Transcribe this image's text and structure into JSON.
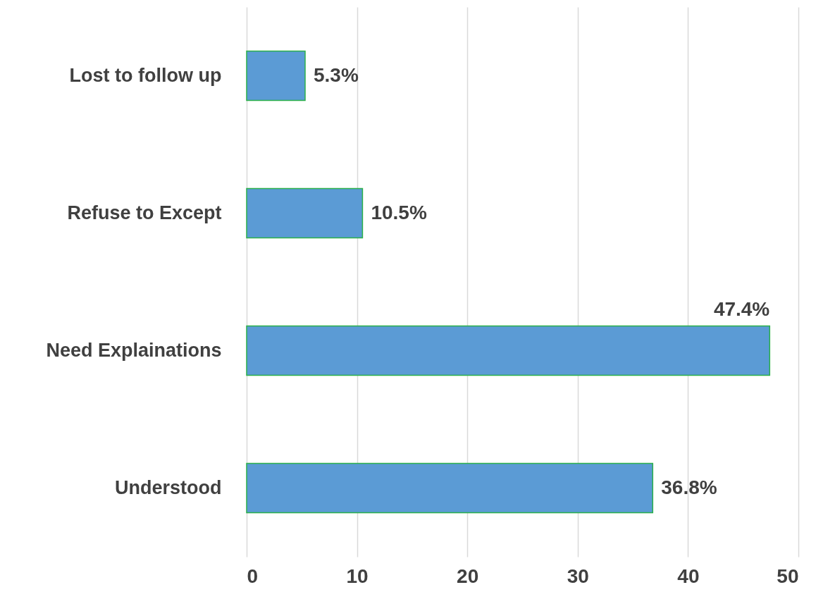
{
  "chart_data": {
    "type": "bar",
    "orientation": "horizontal",
    "categories": [
      "Lost to follow up",
      "Refuse to Except",
      "Need Explainations",
      "Understood"
    ],
    "values": [
      5.3,
      10.5,
      47.4,
      36.8
    ],
    "value_labels": [
      "5.3%",
      "10.5%",
      "47.4%",
      "36.8%"
    ],
    "color": "#5b9bd5",
    "xlim": [
      0,
      50
    ],
    "xticks": [
      0,
      10,
      20,
      30,
      40,
      50
    ],
    "grid": "x"
  }
}
